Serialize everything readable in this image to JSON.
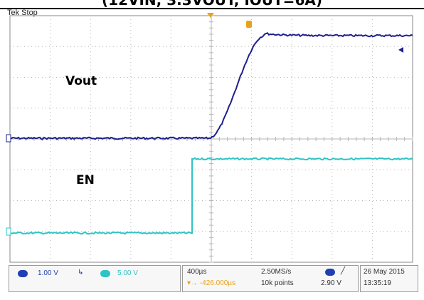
{
  "caption": "(12VIN, 3.3VOUT, IOUT=6A)",
  "scope": {
    "status": "Tek Stop",
    "colors": {
      "ch1": "#1f1f8f",
      "ch2": "#2fc4c4",
      "grid": "#b5b5b5",
      "trigger": "#e8a21a"
    }
  },
  "labels": {
    "vout": "Vout",
    "en": "EN"
  },
  "status_bar": {
    "ch1_scale": "1.00 V",
    "ch2_scale": "5.00 V",
    "time_div": "400µs",
    "trigger_delay": "-426.000µs",
    "sample_rate": "2.50MS/s",
    "record_length": "10k points",
    "trigger_level": "2.90 V",
    "date": "26 May 2015",
    "time": "13:35:19"
  },
  "icons": [
    "ch1-badge-icon",
    "ch2-badge-icon",
    "trigger-slope-icon",
    "trigger-marker-icon",
    "bandwidth-icon"
  ]
}
